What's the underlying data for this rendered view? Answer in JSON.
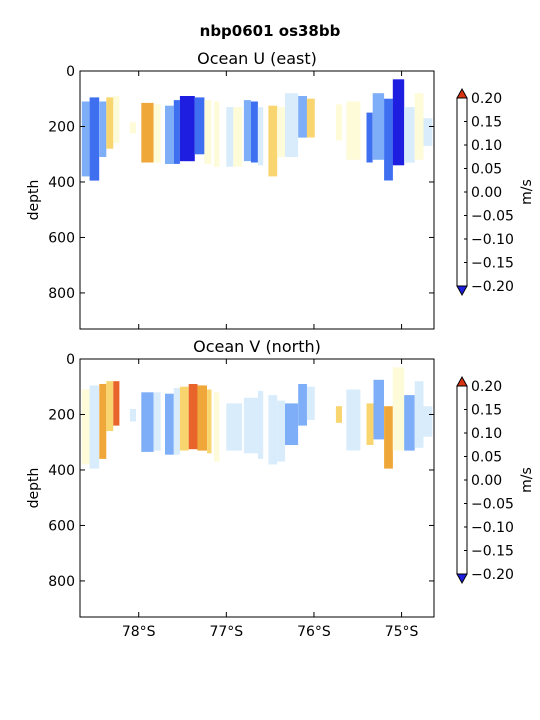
{
  "figure": {
    "suptitle": "nbp0601 os38bb"
  },
  "colorbar": {
    "unit_label": "m/s",
    "ticks": [
      "0.20",
      "0.15",
      "0.10",
      "0.05",
      "0.00",
      "−0.05",
      "−0.10",
      "−0.15",
      "−0.20"
    ],
    "levels": [
      -0.2,
      -0.15,
      -0.1,
      -0.05,
      0.0,
      0.05,
      0.1,
      0.15,
      0.2
    ],
    "colors": [
      "#2a2bf0",
      "#3d6ff0",
      "#7eaef7",
      "#d8ecfb",
      "#fefbd8",
      "#f8d56f",
      "#f0a73a",
      "#e8642a"
    ],
    "under_color": "#1e1ee0",
    "over_color": "#d83412"
  },
  "chart_data": [
    {
      "type": "heatmap",
      "title": "Ocean U (east)",
      "xlabel": "",
      "ylabel": "depth",
      "xlim": [
        -78.67,
        -74.63
      ],
      "ylim": [
        930,
        0
      ],
      "x_ticks": [
        {
          "value": -78,
          "label": "78°S"
        },
        {
          "value": -77,
          "label": "77°S"
        },
        {
          "value": -76,
          "label": "76°S"
        },
        {
          "value": -75,
          "label": "75°S"
        }
      ],
      "x_tick_labels_shown": false,
      "y_ticks": [
        "0",
        "200",
        "400",
        "600",
        "800"
      ],
      "y_tick_values": [
        0,
        200,
        400,
        600,
        800
      ],
      "cells": [
        {
          "x0": -78.65,
          "x1": -78.56,
          "d0": 110,
          "d1": 380,
          "v": -0.06
        },
        {
          "x0": -78.56,
          "x1": -78.45,
          "d0": 95,
          "d1": 395,
          "v": -0.11
        },
        {
          "x0": -78.45,
          "x1": -78.37,
          "d0": 110,
          "d1": 310,
          "v": -0.06
        },
        {
          "x0": -78.37,
          "x1": -78.29,
          "d0": 95,
          "d1": 280,
          "v": 0.07
        },
        {
          "x0": -78.29,
          "x1": -78.22,
          "d0": 90,
          "d1": 260,
          "v": 0.02
        },
        {
          "x0": -78.1,
          "x1": -78.03,
          "d0": 185,
          "d1": 225,
          "v": 0.02
        },
        {
          "x0": -77.97,
          "x1": -77.83,
          "d0": 115,
          "d1": 330,
          "v": 0.12
        },
        {
          "x0": -77.83,
          "x1": -77.75,
          "d0": 120,
          "d1": 330,
          "v": 0.02
        },
        {
          "x0": -77.7,
          "x1": -77.6,
          "d0": 125,
          "d1": 335,
          "v": -0.06
        },
        {
          "x0": -77.6,
          "x1": -77.53,
          "d0": 105,
          "d1": 335,
          "v": -0.14
        },
        {
          "x0": -77.53,
          "x1": -77.36,
          "d0": 90,
          "d1": 325,
          "v": -0.22
        },
        {
          "x0": -77.36,
          "x1": -77.25,
          "d0": 95,
          "d1": 300,
          "v": -0.13
        },
        {
          "x0": -77.25,
          "x1": -77.17,
          "d0": 105,
          "d1": 335,
          "v": 0.03
        },
        {
          "x0": -77.14,
          "x1": -77.08,
          "d0": 110,
          "d1": 345,
          "v": 0.03
        },
        {
          "x0": -77.0,
          "x1": -76.92,
          "d0": 130,
          "d1": 345,
          "v": -0.02
        },
        {
          "x0": -76.92,
          "x1": -76.82,
          "d0": 130,
          "d1": 345,
          "v": 0.03
        },
        {
          "x0": -76.8,
          "x1": -76.72,
          "d0": 105,
          "d1": 325,
          "v": -0.07
        },
        {
          "x0": -76.72,
          "x1": -76.64,
          "d0": 110,
          "d1": 330,
          "v": -0.12
        },
        {
          "x0": -76.64,
          "x1": -76.58,
          "d0": 130,
          "d1": 340,
          "v": -0.02
        },
        {
          "x0": -76.52,
          "x1": -76.42,
          "d0": 125,
          "d1": 380,
          "v": 0.07
        },
        {
          "x0": -76.42,
          "x1": -76.33,
          "d0": 130,
          "d1": 310,
          "v": 0.02
        },
        {
          "x0": -76.33,
          "x1": -76.18,
          "d0": 80,
          "d1": 310,
          "v": -0.03
        },
        {
          "x0": -76.18,
          "x1": -76.08,
          "d0": 90,
          "d1": 240,
          "v": -0.08
        },
        {
          "x0": -76.08,
          "x1": -75.99,
          "d0": 100,
          "d1": 240,
          "v": 0.06
        },
        {
          "x0": -75.75,
          "x1": -75.68,
          "d0": 120,
          "d1": 250,
          "v": 0.02
        },
        {
          "x0": -75.63,
          "x1": -75.47,
          "d0": 110,
          "d1": 320,
          "v": 0.02
        },
        {
          "x0": -75.4,
          "x1": -75.33,
          "d0": 150,
          "d1": 330,
          "v": -0.14
        },
        {
          "x0": -75.33,
          "x1": -75.2,
          "d0": 80,
          "d1": 320,
          "v": -0.09
        },
        {
          "x0": -75.2,
          "x1": -75.1,
          "d0": 100,
          "d1": 395,
          "v": -0.12
        },
        {
          "x0": -75.1,
          "x1": -74.97,
          "d0": 30,
          "d1": 340,
          "v": -0.22
        },
        {
          "x0": -74.97,
          "x1": -74.85,
          "d0": 130,
          "d1": 330,
          "v": -0.04
        },
        {
          "x0": -74.85,
          "x1": -74.75,
          "d0": 80,
          "d1": 320,
          "v": 0.04
        },
        {
          "x0": -74.75,
          "x1": -74.65,
          "d0": 170,
          "d1": 270,
          "v": -0.03
        }
      ]
    },
    {
      "type": "heatmap",
      "title": "Ocean V (north)",
      "xlabel": "",
      "ylabel": "depth",
      "xlim": [
        -78.67,
        -74.63
      ],
      "ylim": [
        930,
        0
      ],
      "x_ticks": [
        {
          "value": -78,
          "label": "78°S"
        },
        {
          "value": -77,
          "label": "77°S"
        },
        {
          "value": -76,
          "label": "76°S"
        },
        {
          "value": -75,
          "label": "75°S"
        }
      ],
      "x_tick_labels_shown": true,
      "y_ticks": [
        "0",
        "200",
        "400",
        "600",
        "800"
      ],
      "y_tick_values": [
        0,
        200,
        400,
        600,
        800
      ],
      "cells": [
        {
          "x0": -78.65,
          "x1": -78.56,
          "d0": 110,
          "d1": 380,
          "v": 0.02
        },
        {
          "x0": -78.56,
          "x1": -78.45,
          "d0": 95,
          "d1": 395,
          "v": -0.03
        },
        {
          "x0": -78.45,
          "x1": -78.37,
          "d0": 90,
          "d1": 360,
          "v": 0.13
        },
        {
          "x0": -78.37,
          "x1": -78.29,
          "d0": 80,
          "d1": 260,
          "v": 0.09
        },
        {
          "x0": -78.29,
          "x1": -78.22,
          "d0": 80,
          "d1": 240,
          "v": 0.16
        },
        {
          "x0": -78.1,
          "x1": -78.03,
          "d0": 180,
          "d1": 225,
          "v": -0.03
        },
        {
          "x0": -77.97,
          "x1": -77.83,
          "d0": 120,
          "d1": 335,
          "v": -0.07
        },
        {
          "x0": -77.83,
          "x1": -77.75,
          "d0": 120,
          "d1": 330,
          "v": -0.03
        },
        {
          "x0": -77.7,
          "x1": -77.6,
          "d0": 125,
          "d1": 345,
          "v": -0.08
        },
        {
          "x0": -77.6,
          "x1": -77.53,
          "d0": 105,
          "d1": 345,
          "v": -0.03
        },
        {
          "x0": -77.53,
          "x1": -77.43,
          "d0": 100,
          "d1": 330,
          "v": 0.08
        },
        {
          "x0": -77.43,
          "x1": -77.33,
          "d0": 90,
          "d1": 325,
          "v": 0.17
        },
        {
          "x0": -77.33,
          "x1": -77.22,
          "d0": 95,
          "d1": 330,
          "v": 0.12
        },
        {
          "x0": -77.22,
          "x1": -77.17,
          "d0": 110,
          "d1": 340,
          "v": 0.06
        },
        {
          "x0": -77.14,
          "x1": -77.08,
          "d0": 120,
          "d1": 370,
          "v": 0.03
        },
        {
          "x0": -77.0,
          "x1": -76.82,
          "d0": 160,
          "d1": 330,
          "v": -0.02
        },
        {
          "x0": -76.8,
          "x1": -76.64,
          "d0": 140,
          "d1": 340,
          "v": -0.03
        },
        {
          "x0": -76.64,
          "x1": -76.58,
          "d0": 115,
          "d1": 360,
          "v": -0.03
        },
        {
          "x0": -76.52,
          "x1": -76.42,
          "d0": 130,
          "d1": 380,
          "v": -0.03
        },
        {
          "x0": -76.42,
          "x1": -76.33,
          "d0": 150,
          "d1": 370,
          "v": -0.02
        },
        {
          "x0": -76.33,
          "x1": -76.18,
          "d0": 160,
          "d1": 310,
          "v": -0.09
        },
        {
          "x0": -76.18,
          "x1": -76.08,
          "d0": 90,
          "d1": 240,
          "v": -0.06
        },
        {
          "x0": -76.08,
          "x1": -75.99,
          "d0": 100,
          "d1": 220,
          "v": -0.03
        },
        {
          "x0": -75.75,
          "x1": -75.68,
          "d0": 170,
          "d1": 230,
          "v": 0.07
        },
        {
          "x0": -75.63,
          "x1": -75.47,
          "d0": 110,
          "d1": 330,
          "v": -0.02
        },
        {
          "x0": -75.4,
          "x1": -75.32,
          "d0": 160,
          "d1": 310,
          "v": 0.06
        },
        {
          "x0": -75.32,
          "x1": -75.2,
          "d0": 75,
          "d1": 290,
          "v": -0.07
        },
        {
          "x0": -75.2,
          "x1": -75.1,
          "d0": 170,
          "d1": 395,
          "v": 0.12
        },
        {
          "x0": -75.1,
          "x1": -74.97,
          "d0": 30,
          "d1": 330,
          "v": 0.04
        },
        {
          "x0": -74.97,
          "x1": -74.85,
          "d0": 130,
          "d1": 330,
          "v": -0.09
        },
        {
          "x0": -74.85,
          "x1": -74.75,
          "d0": 80,
          "d1": 320,
          "v": -0.03
        },
        {
          "x0": -74.75,
          "x1": -74.65,
          "d0": 170,
          "d1": 280,
          "v": -0.05
        }
      ]
    }
  ]
}
